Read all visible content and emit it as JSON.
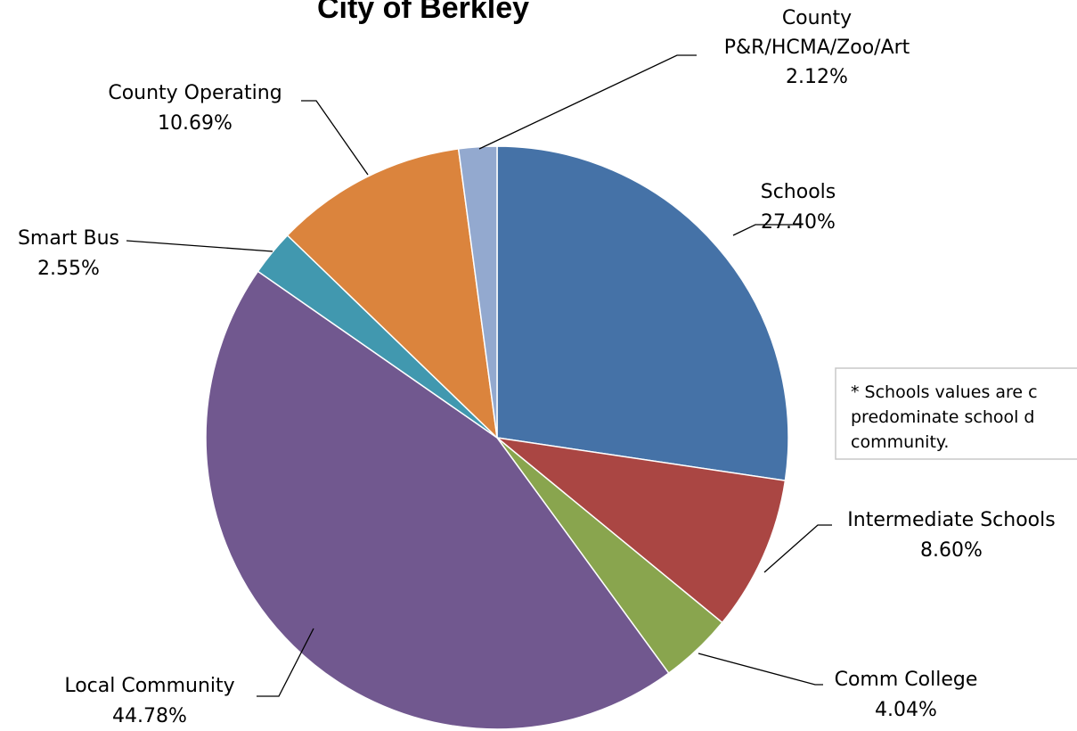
{
  "chart_data": {
    "type": "pie",
    "title": "City of Berkley",
    "start_angle_deg": 0,
    "direction": "clockwise",
    "slices": [
      {
        "label": "Schools",
        "value": 27.4,
        "value_label": "27.40%",
        "color": "#4572A7"
      },
      {
        "label": "Intermediate Schools",
        "value": 8.6,
        "value_label": "8.60%",
        "color": "#AA4643"
      },
      {
        "label": "Comm College",
        "value": 4.04,
        "value_label": "4.04%",
        "color": "#89A54E"
      },
      {
        "label": "Local Community",
        "value": 44.78,
        "value_label": "44.78%",
        "color": "#71588F"
      },
      {
        "label": "Smart Bus",
        "value": 2.55,
        "value_label": "2.55%",
        "color": "#4198AF"
      },
      {
        "label": "County Operating",
        "value": 10.69,
        "value_label": "10.69%",
        "color": "#DB843D"
      },
      {
        "label": "County P&R/HCMA/Zoo/Art",
        "label_lines": [
          "County",
          "P&R/HCMA/Zoo/Art"
        ],
        "value": 2.12,
        "value_label": "2.12%",
        "color": "#93A9CF"
      }
    ],
    "note_lines": [
      "* Schools values are c",
      "predominate school d",
      "community."
    ]
  }
}
